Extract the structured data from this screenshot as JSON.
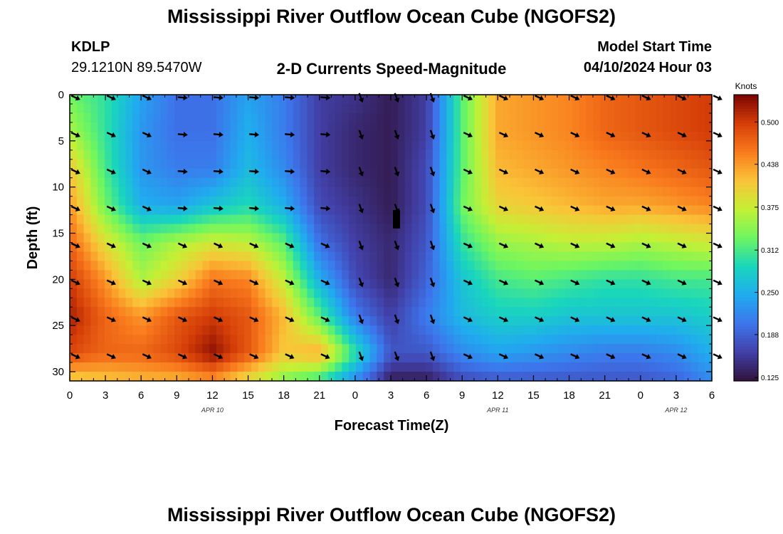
{
  "header": {
    "title": "Mississippi River Outflow Ocean Cube (NGOFS2)",
    "station_code": "KDLP",
    "station_coords": "29.1210N  89.5470W",
    "subtitle": "2-D Currents Speed-Magnitude",
    "model_label": "Model Start Time",
    "model_start": "04/10/2024 Hour 03"
  },
  "footer": {
    "title": "Mississippi River Outflow Ocean Cube (NGOFS2)"
  },
  "chart_data": {
    "type": "heatmap",
    "title": "2-D Currents Speed-Magnitude",
    "xlabel": "Forecast Time(Z)",
    "ylabel": "Depth (ft)",
    "x_tick_labels": [
      "0",
      "3",
      "6",
      "9",
      "12",
      "15",
      "18",
      "21",
      "0",
      "3",
      "6",
      "9",
      "12",
      "15",
      "18",
      "21",
      "0",
      "3",
      "6"
    ],
    "x_ticks_hours": [
      0,
      3,
      6,
      9,
      12,
      15,
      18,
      21,
      24,
      27,
      30,
      33,
      36,
      39,
      42,
      45,
      48,
      51,
      54
    ],
    "date_labels": [
      {
        "text": "APR 10",
        "hour": 12
      },
      {
        "text": "APR 11",
        "hour": 36
      },
      {
        "text": "APR 12",
        "hour": 51
      }
    ],
    "y_ticks": [
      0,
      5,
      10,
      15,
      20,
      25,
      30
    ],
    "xlim": [
      0,
      54
    ],
    "ylim": [
      0,
      31
    ],
    "y_inverted": true,
    "colorbar": {
      "label": "Knots",
      "ticks": [
        0.125,
        0.188,
        0.25,
        0.312,
        0.375,
        0.438,
        0.5
      ],
      "tick_labels": [
        "0.125",
        "0.188",
        "0.250",
        "0.312",
        "0.375",
        "0.438",
        "0.500"
      ],
      "range": [
        0.12,
        0.54
      ],
      "colormap": "turbo"
    },
    "hours": [
      0,
      3,
      6,
      9,
      12,
      15,
      18,
      21,
      24,
      27,
      30,
      33,
      36,
      39,
      42,
      45,
      48,
      51,
      54
    ],
    "depths": [
      0,
      4,
      8,
      12,
      16,
      20,
      24,
      28,
      31
    ],
    "speed_knots": [
      [
        0.33,
        0.3,
        0.24,
        0.2,
        0.2,
        0.24,
        0.21,
        0.16,
        0.15,
        0.13,
        0.16,
        0.32,
        0.43,
        0.44,
        0.45,
        0.47,
        0.48,
        0.49,
        0.5
      ],
      [
        0.36,
        0.3,
        0.23,
        0.2,
        0.2,
        0.25,
        0.21,
        0.16,
        0.14,
        0.13,
        0.16,
        0.32,
        0.43,
        0.44,
        0.45,
        0.47,
        0.48,
        0.49,
        0.5
      ],
      [
        0.41,
        0.31,
        0.23,
        0.21,
        0.21,
        0.26,
        0.22,
        0.16,
        0.14,
        0.13,
        0.17,
        0.32,
        0.42,
        0.43,
        0.44,
        0.45,
        0.46,
        0.47,
        0.48
      ],
      [
        0.44,
        0.33,
        0.25,
        0.24,
        0.27,
        0.29,
        0.25,
        0.17,
        0.15,
        0.13,
        0.17,
        0.33,
        0.4,
        0.41,
        0.42,
        0.43,
        0.43,
        0.44,
        0.45
      ],
      [
        0.47,
        0.39,
        0.33,
        0.36,
        0.38,
        0.37,
        0.32,
        0.2,
        0.16,
        0.14,
        0.18,
        0.3,
        0.35,
        0.36,
        0.37,
        0.37,
        0.36,
        0.37,
        0.38
      ],
      [
        0.5,
        0.44,
        0.36,
        0.4,
        0.46,
        0.45,
        0.37,
        0.25,
        0.17,
        0.14,
        0.19,
        0.27,
        0.31,
        0.32,
        0.31,
        0.3,
        0.3,
        0.31,
        0.31
      ],
      [
        0.52,
        0.47,
        0.44,
        0.48,
        0.5,
        0.48,
        0.42,
        0.32,
        0.21,
        0.16,
        0.21,
        0.26,
        0.28,
        0.28,
        0.27,
        0.27,
        0.27,
        0.27,
        0.28
      ],
      [
        0.49,
        0.47,
        0.47,
        0.49,
        0.53,
        0.48,
        0.41,
        0.43,
        0.3,
        0.18,
        0.18,
        0.22,
        0.24,
        0.23,
        0.22,
        0.21,
        0.21,
        0.22,
        0.25
      ],
      [
        0.4,
        0.41,
        0.42,
        0.42,
        0.44,
        0.39,
        0.34,
        0.3,
        0.22,
        0.13,
        0.13,
        0.17,
        0.18,
        0.18,
        0.18,
        0.18,
        0.18,
        0.19,
        0.22
      ]
    ]
  }
}
